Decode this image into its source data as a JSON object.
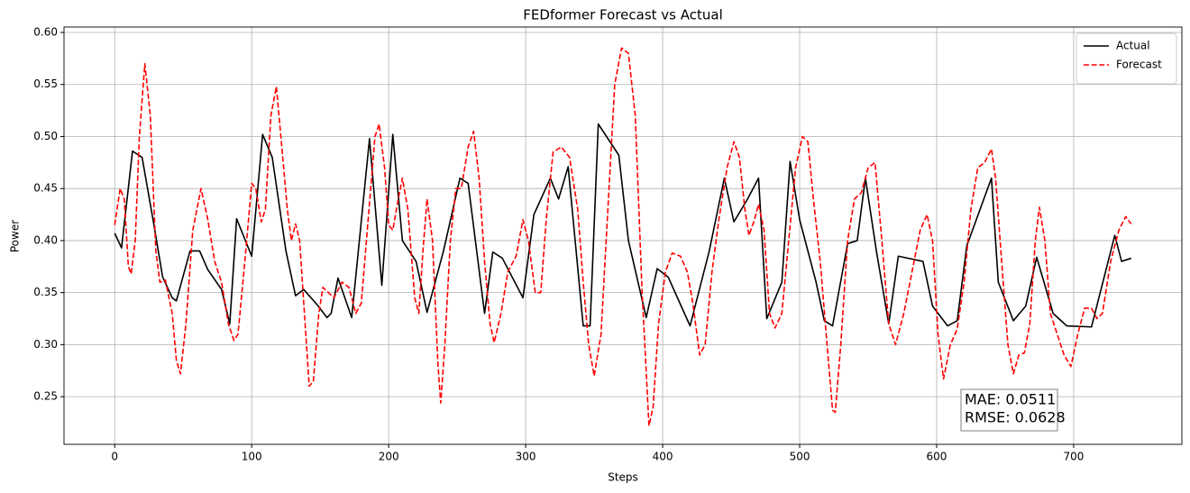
{
  "chart_data": {
    "type": "line",
    "title": "FEDformer Forecast vs Actual",
    "xlabel": "Steps",
    "ylabel": "Power",
    "xlim": [
      -37,
      779
    ],
    "ylim": [
      0.2042,
      0.6052
    ],
    "xticks": [
      0,
      100,
      200,
      300,
      400,
      500,
      600,
      700
    ],
    "yticks": [
      0.25,
      {
        "value": 0.3,
        "label": "0.30"
      },
      0.35,
      {
        "value": 0.4,
        "label": "0.40"
      },
      0.45,
      {
        "value": 0.5,
        "label": "0.50"
      },
      0.55,
      {
        "value": 0.6,
        "label": "0.60"
      }
    ],
    "grid": true,
    "legend": "upper right",
    "annotations": [
      "MAE: 0.0511",
      "RMSE: 0.0628"
    ],
    "series": [
      {
        "name": "Actual",
        "color": "#000000",
        "style": "solid",
        "x": [
          0,
          5,
          13,
          20,
          28,
          35,
          42,
          45,
          55,
          62,
          68,
          78,
          84,
          89,
          100,
          108,
          115,
          125,
          132,
          138,
          148,
          155,
          158,
          163,
          173,
          186,
          195,
          203,
          210,
          220,
          228,
          240,
          252,
          258,
          270,
          276,
          283,
          298,
          306,
          318,
          324,
          331,
          342,
          347,
          353,
          368,
          375,
          388,
          396,
          404,
          420,
          434,
          445,
          452,
          462,
          470,
          476,
          487,
          493,
          500,
          512,
          518,
          524,
          535,
          542,
          548,
          556,
          565,
          572,
          590,
          597,
          608,
          615,
          622,
          640,
          645,
          656,
          665,
          673,
          685,
          695,
          713,
          730,
          735,
          742
        ],
        "values": [
          0.407,
          0.393,
          0.486,
          0.48,
          0.42,
          0.365,
          0.345,
          0.342,
          0.39,
          0.39,
          0.372,
          0.353,
          0.32,
          0.421,
          0.385,
          0.502,
          0.48,
          0.39,
          0.347,
          0.353,
          0.338,
          0.326,
          0.33,
          0.364,
          0.326,
          0.498,
          0.357,
          0.502,
          0.4,
          0.38,
          0.331,
          0.39,
          0.46,
          0.455,
          0.33,
          0.389,
          0.383,
          0.345,
          0.425,
          0.46,
          0.44,
          0.471,
          0.318,
          0.318,
          0.512,
          0.482,
          0.4,
          0.326,
          0.373,
          0.365,
          0.318,
          0.39,
          0.46,
          0.418,
          0.44,
          0.46,
          0.325,
          0.36,
          0.476,
          0.42,
          0.36,
          0.323,
          0.318,
          0.397,
          0.4,
          0.46,
          0.39,
          0.32,
          0.385,
          0.38,
          0.337,
          0.318,
          0.323,
          0.395,
          0.46,
          0.36,
          0.323,
          0.337,
          0.384,
          0.33,
          0.318,
          0.317,
          0.405,
          0.38,
          0.383
        ]
      },
      {
        "name": "Forecast",
        "color": "#ff0000",
        "style": "dashed",
        "x": [
          0,
          4,
          7,
          10,
          12,
          15,
          18,
          22,
          26,
          30,
          33,
          37,
          42,
          45,
          48,
          52,
          57,
          63,
          68,
          73,
          78,
          83,
          87,
          90,
          95,
          100,
          103,
          107,
          110,
          114,
          118,
          122,
          126,
          129,
          132,
          135,
          139,
          142,
          145,
          149,
          152,
          156,
          160,
          166,
          171,
          176,
          180,
          185,
          190,
          193,
          197,
          200,
          203,
          207,
          210,
          214,
          219,
          222,
          225,
          228,
          232,
          236,
          238,
          241,
          245,
          249,
          253,
          258,
          262,
          266,
          270,
          274,
          277,
          282,
          287,
          293,
          298,
          302,
          307,
          311,
          315,
          320,
          326,
          332,
          338,
          342,
          346,
          350,
          355,
          360,
          365,
          370,
          375,
          380,
          385,
          390,
          393,
          397,
          402,
          407,
          413,
          418,
          422,
          427,
          431,
          436,
          441,
          447,
          452,
          456,
          460,
          463,
          467,
          470,
          474,
          478,
          482,
          487,
          492,
          497,
          502,
          506,
          510,
          515,
          520,
          524,
          526,
          530,
          535,
          540,
          545,
          550,
          555,
          560,
          565,
          570,
          576,
          582,
          588,
          593,
          597,
          601,
          605,
          610,
          615,
          620,
          625,
          630,
          635,
          640,
          643,
          648,
          652,
          656,
          660,
          664,
          668,
          672,
          675,
          679,
          683,
          688,
          693,
          698,
          703,
          708,
          713,
          717,
          721,
          727,
          733,
          738,
          742
        ],
        "values": [
          0.415,
          0.45,
          0.44,
          0.375,
          0.368,
          0.4,
          0.5,
          0.57,
          0.52,
          0.39,
          0.36,
          0.362,
          0.33,
          0.285,
          0.272,
          0.32,
          0.41,
          0.45,
          0.42,
          0.38,
          0.36,
          0.32,
          0.304,
          0.31,
          0.38,
          0.455,
          0.45,
          0.418,
          0.43,
          0.52,
          0.548,
          0.49,
          0.43,
          0.4,
          0.416,
          0.4,
          0.32,
          0.26,
          0.265,
          0.33,
          0.355,
          0.35,
          0.345,
          0.36,
          0.355,
          0.33,
          0.34,
          0.42,
          0.5,
          0.512,
          0.47,
          0.415,
          0.41,
          0.44,
          0.46,
          0.43,
          0.345,
          0.33,
          0.39,
          0.44,
          0.4,
          0.28,
          0.244,
          0.3,
          0.4,
          0.45,
          0.45,
          0.49,
          0.505,
          0.46,
          0.38,
          0.32,
          0.302,
          0.33,
          0.37,
          0.385,
          0.42,
          0.4,
          0.35,
          0.35,
          0.42,
          0.485,
          0.49,
          0.48,
          0.43,
          0.36,
          0.3,
          0.27,
          0.31,
          0.43,
          0.55,
          0.585,
          0.58,
          0.52,
          0.35,
          0.222,
          0.24,
          0.32,
          0.37,
          0.388,
          0.385,
          0.37,
          0.34,
          0.29,
          0.3,
          0.37,
          0.42,
          0.47,
          0.495,
          0.48,
          0.43,
          0.405,
          0.42,
          0.435,
          0.41,
          0.33,
          0.316,
          0.33,
          0.4,
          0.47,
          0.5,
          0.495,
          0.44,
          0.38,
          0.3,
          0.237,
          0.235,
          0.3,
          0.4,
          0.44,
          0.446,
          0.47,
          0.475,
          0.4,
          0.32,
          0.3,
          0.33,
          0.37,
          0.41,
          0.425,
          0.4,
          0.31,
          0.267,
          0.3,
          0.315,
          0.36,
          0.43,
          0.47,
          0.475,
          0.488,
          0.46,
          0.37,
          0.3,
          0.272,
          0.29,
          0.292,
          0.32,
          0.4,
          0.432,
          0.4,
          0.33,
          0.31,
          0.29,
          0.279,
          0.31,
          0.335,
          0.335,
          0.325,
          0.33,
          0.38,
          0.41,
          0.423,
          0.416
        ]
      }
    ]
  }
}
